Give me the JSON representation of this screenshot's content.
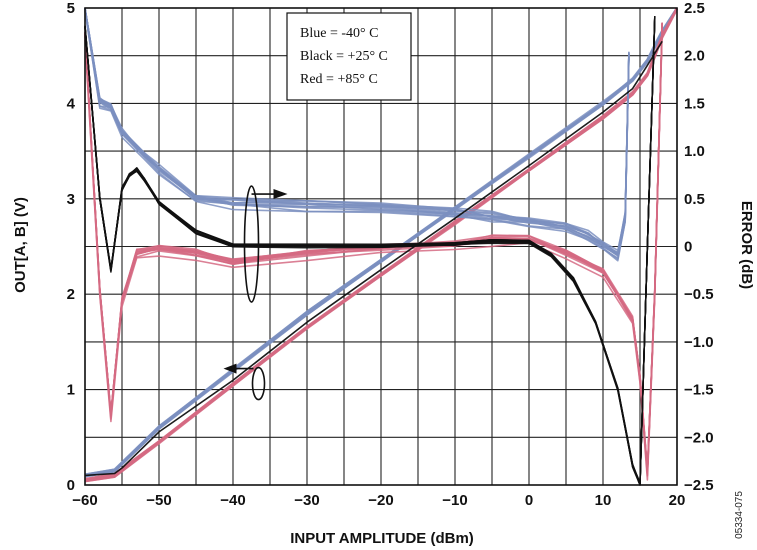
{
  "chart_data": {
    "type": "line",
    "xlabel": "INPUT AMPLITUDE (dBm)",
    "ylabel_left": "OUT[A, B] (V)",
    "ylabel_right": "ERROR (dB)",
    "xlim": [
      -60,
      20
    ],
    "ylim_left": [
      0,
      5
    ],
    "ylim_right": [
      -2.5,
      2.5
    ],
    "x_ticks": [
      "−60",
      "−50",
      "−40",
      "−30",
      "−20",
      "−10",
      "0",
      "10",
      "20"
    ],
    "y_left_ticks": [
      "0",
      "1",
      "2",
      "3",
      "4",
      "5"
    ],
    "y_right_ticks": [
      "−2.5",
      "−2.0",
      "−1.5",
      "−1.0",
      "−0.5",
      "0",
      "0.5",
      "1.0",
      "1.5",
      "2.0",
      "2.5"
    ],
    "grid": true,
    "legend": {
      "placement": "top-center",
      "entries": [
        "Blue = -40° C",
        "Black = +25° C",
        "Red = +85° C"
      ]
    },
    "figure_id": "05334-075",
    "colors": {
      "blue": "#7b8fc0",
      "black": "#111111",
      "red": "#d56a82"
    },
    "series": [
      {
        "name": "Blue = -40° C",
        "axis": "left",
        "x": [
          -62,
          -56,
          -50,
          -40,
          -30,
          -20,
          -10,
          0,
          10,
          14,
          16,
          17,
          18,
          20
        ],
        "y": [
          0.1,
          0.15,
          0.6,
          1.2,
          1.8,
          2.35,
          2.9,
          3.45,
          4.0,
          4.25,
          4.45,
          4.6,
          4.75,
          5.0
        ]
      },
      {
        "name": "Red = +85° C",
        "axis": "left",
        "x": [
          -62,
          -56,
          -50,
          -40,
          -30,
          -20,
          -10,
          0,
          10,
          14,
          16,
          17,
          18,
          20
        ],
        "y": [
          0.05,
          0.1,
          0.45,
          1.05,
          1.65,
          2.2,
          2.75,
          3.3,
          3.85,
          4.1,
          4.3,
          4.5,
          4.7,
          5.0
        ]
      },
      {
        "name": "Black = +25° C",
        "axis": "left",
        "x": [
          -62,
          -56,
          -55,
          -50,
          -40,
          -30,
          -20,
          -10,
          0,
          10,
          14,
          16,
          18
        ],
        "y": [
          0.1,
          0.12,
          0.18,
          0.55,
          1.1,
          1.7,
          2.25,
          2.8,
          3.35,
          3.9,
          4.15,
          4.4,
          4.65
        ]
      },
      {
        "name": "Blue = -40° C",
        "axis": "right",
        "x": [
          -60,
          -58,
          -56.5,
          -55,
          -52,
          -50,
          -45,
          -40,
          -30,
          -20,
          -10,
          -5,
          0,
          5,
          8,
          10,
          12,
          13,
          13.5
        ],
        "y": [
          2.5,
          1.5,
          1.45,
          1.2,
          0.95,
          0.8,
          0.5,
          0.45,
          0.42,
          0.4,
          0.35,
          0.3,
          0.25,
          0.2,
          0.1,
          0.0,
          -0.1,
          0.3,
          2.0
        ]
      },
      {
        "name": "Black = +25° C",
        "axis": "right",
        "x": [
          -60,
          -58,
          -56.5,
          -55,
          -54,
          -53,
          -52,
          -50,
          -45,
          -40,
          -30,
          -20,
          -10,
          -5,
          0,
          3,
          6,
          9,
          12,
          14,
          15,
          16,
          17
        ],
        "y": [
          2.3,
          0.5,
          -0.25,
          0.6,
          0.75,
          0.8,
          0.7,
          0.45,
          0.15,
          0.0,
          0.0,
          0.0,
          0.02,
          0.05,
          0.05,
          -0.1,
          -0.35,
          -0.8,
          -1.5,
          -2.3,
          -2.5,
          0.0,
          2.4
        ]
      },
      {
        "name": "Red = +85° C",
        "axis": "right",
        "x": [
          -60,
          -58,
          -56.5,
          -55,
          -53,
          -50,
          -45,
          -40,
          -30,
          -20,
          -10,
          -5,
          0,
          5,
          10,
          14,
          15,
          16,
          17,
          18
        ],
        "y": [
          2.2,
          -0.5,
          -1.8,
          -0.6,
          -0.1,
          -0.05,
          -0.1,
          -0.2,
          -0.1,
          -0.05,
          0.0,
          0.05,
          0.05,
          -0.1,
          -0.3,
          -0.8,
          -1.4,
          -2.4,
          -0.5,
          2.3
        ]
      }
    ],
    "annotations": [
      {
        "arrow": "right",
        "marks_axis": "right",
        "x": -37.5,
        "y_left": 3.05
      },
      {
        "arrow": "left",
        "marks_axis": "left",
        "x": -37.5,
        "y_left": 1.22
      }
    ]
  }
}
